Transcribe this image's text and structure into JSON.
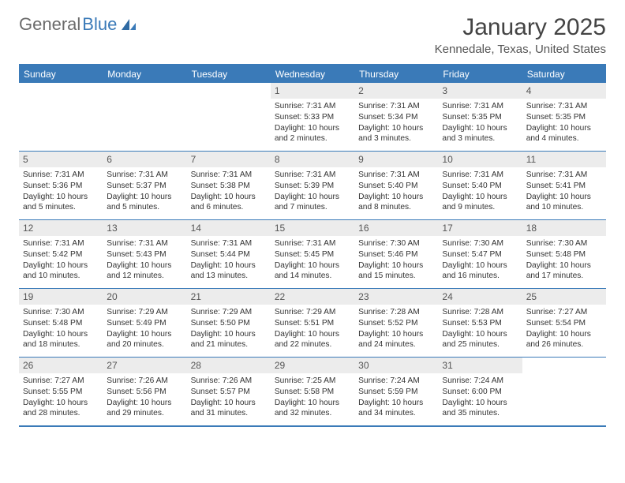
{
  "logo": {
    "text_gray": "General",
    "text_blue": "Blue"
  },
  "title": "January 2025",
  "location": "Kennedale, Texas, United States",
  "colors": {
    "brand_blue": "#3a7ab8",
    "daynum_bg": "#ececec",
    "text": "#333333",
    "title_text": "#444444",
    "subtitle_text": "#555555",
    "background": "#ffffff"
  },
  "days_of_week": [
    "Sunday",
    "Monday",
    "Tuesday",
    "Wednesday",
    "Thursday",
    "Friday",
    "Saturday"
  ],
  "calendar": {
    "type": "table",
    "columns": 7,
    "rows": 5,
    "cell_font_size_pt": 7.5,
    "header_font_size_pt": 9,
    "daynum_font_size_pt": 9
  },
  "weeks": [
    [
      null,
      null,
      null,
      {
        "n": "1",
        "sunrise": "Sunrise: 7:31 AM",
        "sunset": "Sunset: 5:33 PM",
        "daylight": "Daylight: 10 hours and 2 minutes."
      },
      {
        "n": "2",
        "sunrise": "Sunrise: 7:31 AM",
        "sunset": "Sunset: 5:34 PM",
        "daylight": "Daylight: 10 hours and 3 minutes."
      },
      {
        "n": "3",
        "sunrise": "Sunrise: 7:31 AM",
        "sunset": "Sunset: 5:35 PM",
        "daylight": "Daylight: 10 hours and 3 minutes."
      },
      {
        "n": "4",
        "sunrise": "Sunrise: 7:31 AM",
        "sunset": "Sunset: 5:35 PM",
        "daylight": "Daylight: 10 hours and 4 minutes."
      }
    ],
    [
      {
        "n": "5",
        "sunrise": "Sunrise: 7:31 AM",
        "sunset": "Sunset: 5:36 PM",
        "daylight": "Daylight: 10 hours and 5 minutes."
      },
      {
        "n": "6",
        "sunrise": "Sunrise: 7:31 AM",
        "sunset": "Sunset: 5:37 PM",
        "daylight": "Daylight: 10 hours and 5 minutes."
      },
      {
        "n": "7",
        "sunrise": "Sunrise: 7:31 AM",
        "sunset": "Sunset: 5:38 PM",
        "daylight": "Daylight: 10 hours and 6 minutes."
      },
      {
        "n": "8",
        "sunrise": "Sunrise: 7:31 AM",
        "sunset": "Sunset: 5:39 PM",
        "daylight": "Daylight: 10 hours and 7 minutes."
      },
      {
        "n": "9",
        "sunrise": "Sunrise: 7:31 AM",
        "sunset": "Sunset: 5:40 PM",
        "daylight": "Daylight: 10 hours and 8 minutes."
      },
      {
        "n": "10",
        "sunrise": "Sunrise: 7:31 AM",
        "sunset": "Sunset: 5:40 PM",
        "daylight": "Daylight: 10 hours and 9 minutes."
      },
      {
        "n": "11",
        "sunrise": "Sunrise: 7:31 AM",
        "sunset": "Sunset: 5:41 PM",
        "daylight": "Daylight: 10 hours and 10 minutes."
      }
    ],
    [
      {
        "n": "12",
        "sunrise": "Sunrise: 7:31 AM",
        "sunset": "Sunset: 5:42 PM",
        "daylight": "Daylight: 10 hours and 10 minutes."
      },
      {
        "n": "13",
        "sunrise": "Sunrise: 7:31 AM",
        "sunset": "Sunset: 5:43 PM",
        "daylight": "Daylight: 10 hours and 12 minutes."
      },
      {
        "n": "14",
        "sunrise": "Sunrise: 7:31 AM",
        "sunset": "Sunset: 5:44 PM",
        "daylight": "Daylight: 10 hours and 13 minutes."
      },
      {
        "n": "15",
        "sunrise": "Sunrise: 7:31 AM",
        "sunset": "Sunset: 5:45 PM",
        "daylight": "Daylight: 10 hours and 14 minutes."
      },
      {
        "n": "16",
        "sunrise": "Sunrise: 7:30 AM",
        "sunset": "Sunset: 5:46 PM",
        "daylight": "Daylight: 10 hours and 15 minutes."
      },
      {
        "n": "17",
        "sunrise": "Sunrise: 7:30 AM",
        "sunset": "Sunset: 5:47 PM",
        "daylight": "Daylight: 10 hours and 16 minutes."
      },
      {
        "n": "18",
        "sunrise": "Sunrise: 7:30 AM",
        "sunset": "Sunset: 5:48 PM",
        "daylight": "Daylight: 10 hours and 17 minutes."
      }
    ],
    [
      {
        "n": "19",
        "sunrise": "Sunrise: 7:30 AM",
        "sunset": "Sunset: 5:48 PM",
        "daylight": "Daylight: 10 hours and 18 minutes."
      },
      {
        "n": "20",
        "sunrise": "Sunrise: 7:29 AM",
        "sunset": "Sunset: 5:49 PM",
        "daylight": "Daylight: 10 hours and 20 minutes."
      },
      {
        "n": "21",
        "sunrise": "Sunrise: 7:29 AM",
        "sunset": "Sunset: 5:50 PM",
        "daylight": "Daylight: 10 hours and 21 minutes."
      },
      {
        "n": "22",
        "sunrise": "Sunrise: 7:29 AM",
        "sunset": "Sunset: 5:51 PM",
        "daylight": "Daylight: 10 hours and 22 minutes."
      },
      {
        "n": "23",
        "sunrise": "Sunrise: 7:28 AM",
        "sunset": "Sunset: 5:52 PM",
        "daylight": "Daylight: 10 hours and 24 minutes."
      },
      {
        "n": "24",
        "sunrise": "Sunrise: 7:28 AM",
        "sunset": "Sunset: 5:53 PM",
        "daylight": "Daylight: 10 hours and 25 minutes."
      },
      {
        "n": "25",
        "sunrise": "Sunrise: 7:27 AM",
        "sunset": "Sunset: 5:54 PM",
        "daylight": "Daylight: 10 hours and 26 minutes."
      }
    ],
    [
      {
        "n": "26",
        "sunrise": "Sunrise: 7:27 AM",
        "sunset": "Sunset: 5:55 PM",
        "daylight": "Daylight: 10 hours and 28 minutes."
      },
      {
        "n": "27",
        "sunrise": "Sunrise: 7:26 AM",
        "sunset": "Sunset: 5:56 PM",
        "daylight": "Daylight: 10 hours and 29 minutes."
      },
      {
        "n": "28",
        "sunrise": "Sunrise: 7:26 AM",
        "sunset": "Sunset: 5:57 PM",
        "daylight": "Daylight: 10 hours and 31 minutes."
      },
      {
        "n": "29",
        "sunrise": "Sunrise: 7:25 AM",
        "sunset": "Sunset: 5:58 PM",
        "daylight": "Daylight: 10 hours and 32 minutes."
      },
      {
        "n": "30",
        "sunrise": "Sunrise: 7:24 AM",
        "sunset": "Sunset: 5:59 PM",
        "daylight": "Daylight: 10 hours and 34 minutes."
      },
      {
        "n": "31",
        "sunrise": "Sunrise: 7:24 AM",
        "sunset": "Sunset: 6:00 PM",
        "daylight": "Daylight: 10 hours and 35 minutes."
      },
      null
    ]
  ]
}
